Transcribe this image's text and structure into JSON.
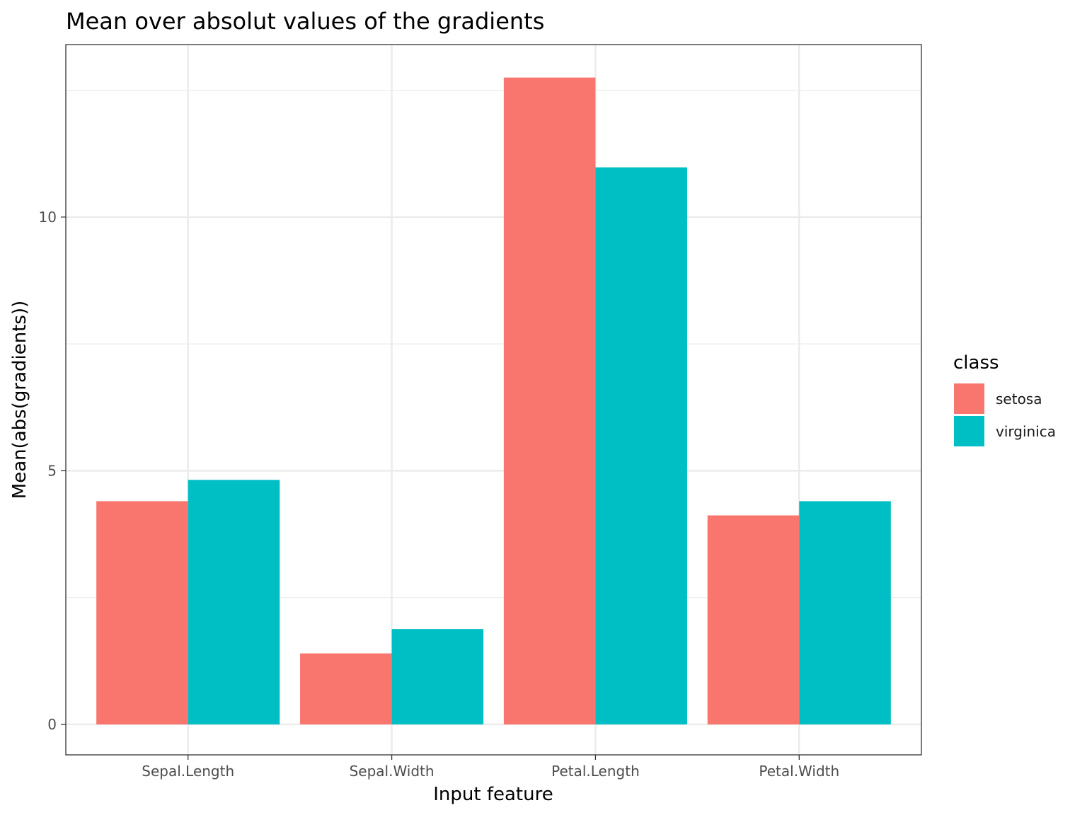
{
  "chart_data": {
    "type": "bar",
    "title": "Mean over absolut values of the gradients",
    "xlabel": "Input feature",
    "ylabel": "Mean(abs(gradients))",
    "categories": [
      "Sepal.Length",
      "Sepal.Width",
      "Petal.Length",
      "Petal.Width"
    ],
    "series": [
      {
        "name": "setosa",
        "color": "#F8766D",
        "values": [
          4.4,
          1.4,
          12.75,
          4.12
        ]
      },
      {
        "name": "virginica",
        "color": "#00BFC4",
        "values": [
          4.82,
          1.88,
          10.98,
          4.4
        ]
      }
    ],
    "ylim": [
      -0.6,
      13.4
    ],
    "yticks": [
      0,
      5,
      10
    ],
    "ytick_labels": [
      "0",
      "5",
      "10"
    ],
    "grid": true,
    "legend": {
      "title": "class",
      "position": "right"
    }
  }
}
